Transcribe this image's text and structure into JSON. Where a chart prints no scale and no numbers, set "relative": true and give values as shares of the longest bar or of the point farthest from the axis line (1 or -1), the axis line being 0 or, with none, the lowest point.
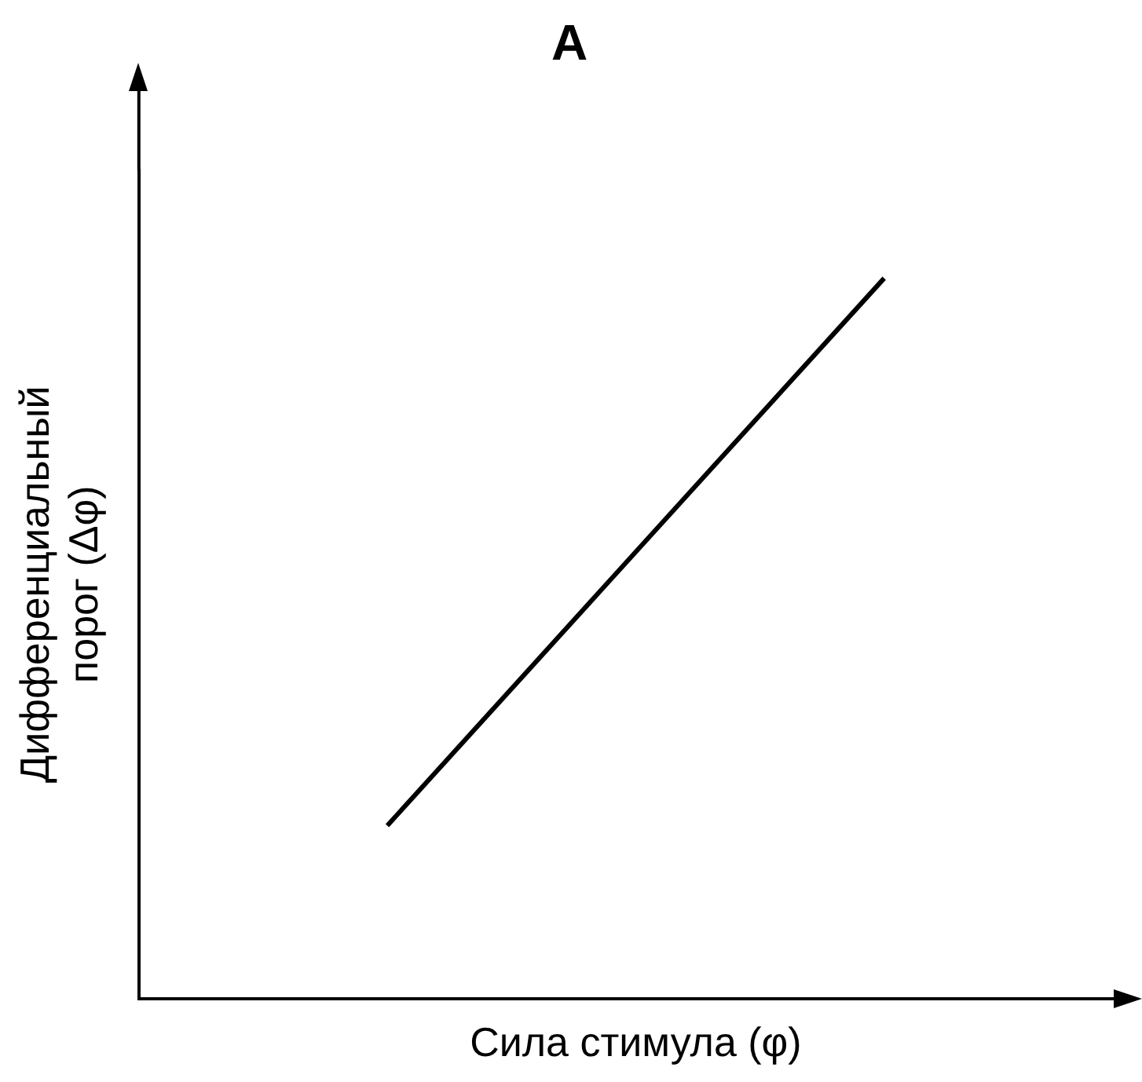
{
  "chart_data": {
    "type": "line",
    "title": "A",
    "xlabel": "Сила стимула (φ)",
    "ylabel": "Дифференциальный порог (Δφ)",
    "relative": true,
    "categories": [
      null,
      null
    ],
    "series": [
      {
        "color": "#000000",
        "values": [
          0.24,
          1
        ]
      }
    ],
    "marker": "none",
    "grid": false,
    "legend": false
  }
}
